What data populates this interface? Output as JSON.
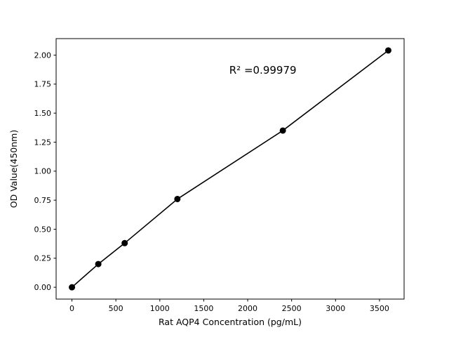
{
  "figure": {
    "background": "#ffffff"
  },
  "chart_data": {
    "type": "scatter",
    "x": [
      0,
      300,
      600,
      1200,
      2400,
      3600
    ],
    "y": [
      0.0,
      0.2,
      0.38,
      0.76,
      1.35,
      2.04
    ],
    "title": "",
    "xlabel": "Rat AQP4 Concentration (pg/mL)",
    "ylabel": "OD Value(450nm)",
    "xlim": [
      -180,
      3780
    ],
    "ylim": [
      -0.102,
      2.142
    ],
    "xticks": [
      0,
      500,
      1000,
      1500,
      2000,
      2500,
      3000,
      3500
    ],
    "xtick_labels": [
      "0",
      "500",
      "1000",
      "1500",
      "2000",
      "2500",
      "3000",
      "3500"
    ],
    "yticks": [
      0.0,
      0.25,
      0.5,
      0.75,
      1.0,
      1.25,
      1.5,
      1.75,
      2.0
    ],
    "ytick_labels": [
      "0.00",
      "0.25",
      "0.50",
      "0.75",
      "1.00",
      "1.25",
      "1.50",
      "1.75",
      "2.00"
    ],
    "annotation": {
      "text": "R² =0.99979",
      "x": 1790,
      "y": 1.87
    },
    "has_line": true,
    "line_color": "#000000",
    "marker_color": "#000000",
    "grid": false,
    "legend": null
  }
}
